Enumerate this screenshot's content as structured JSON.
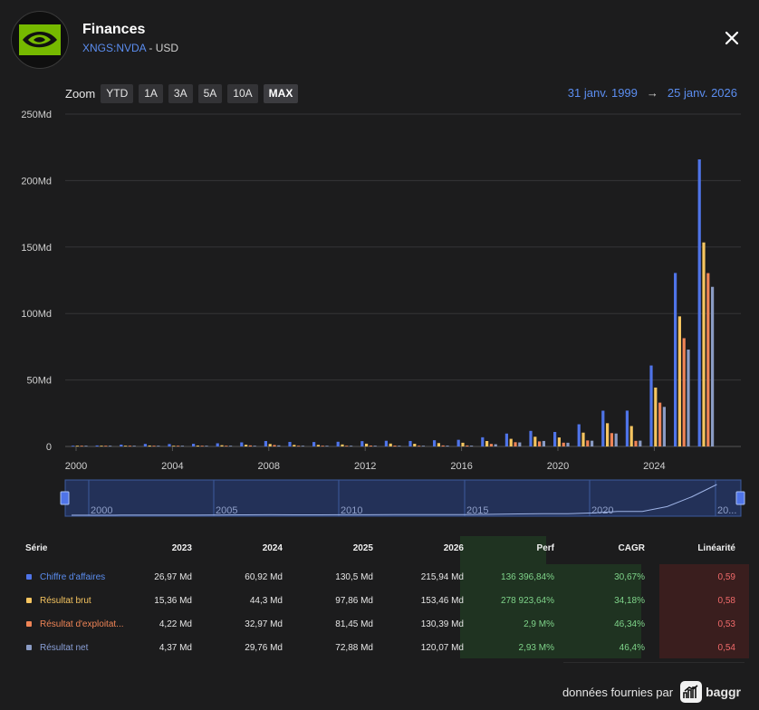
{
  "header": {
    "title": "Finances",
    "ticker": "XNGS:NVDA",
    "separator": " - ",
    "currency": "USD"
  },
  "zoom": {
    "label": "Zoom",
    "buttons": [
      "YTD",
      "1A",
      "3A",
      "5A",
      "10A",
      "MAX"
    ],
    "active": "MAX"
  },
  "daterange": {
    "from": "31 janv. 1999",
    "arrow": "→",
    "to": "25 janv. 2026"
  },
  "colors": {
    "revenue": "#4f74e8",
    "gross": "#f6c560",
    "operating": "#ef8456",
    "net": "#8a9bc4",
    "accent": "#5b8def"
  },
  "chart_data": {
    "type": "bar",
    "yticks": [
      "250Md",
      "200Md",
      "150Md",
      "100Md",
      "50Md",
      "0"
    ],
    "ylim": [
      0,
      250
    ],
    "xticks": [
      "2000",
      "2004",
      "2008",
      "2012",
      "2016",
      "2020",
      "2024"
    ],
    "years": [
      2000,
      2001,
      2002,
      2003,
      2004,
      2005,
      2006,
      2007,
      2008,
      2009,
      2010,
      2011,
      2012,
      2013,
      2014,
      2015,
      2016,
      2017,
      2018,
      2019,
      2020,
      2021,
      2022,
      2023,
      2024,
      2025,
      2026
    ],
    "series": [
      {
        "name": "Chiffre d'affaires",
        "values": [
          0.37,
          0.74,
          1.37,
          1.91,
          1.82,
          2.01,
          2.38,
          3.07,
          4.1,
          3.42,
          3.33,
          3.54,
          4.0,
          4.28,
          4.13,
          4.68,
          5.01,
          6.91,
          9.71,
          11.72,
          10.92,
          16.68,
          26.91,
          26.97,
          60.92,
          130.5,
          215.94
        ]
      },
      {
        "name": "Résultat brut",
        "values": [
          0.14,
          0.28,
          0.52,
          0.69,
          0.53,
          0.65,
          0.91,
          1.28,
          1.88,
          1.18,
          1.16,
          1.5,
          2.09,
          2.18,
          2.03,
          2.54,
          2.8,
          4.09,
          5.74,
          7.31,
          6.77,
          10.4,
          17.48,
          15.36,
          44.3,
          97.86,
          153.46
        ]
      },
      {
        "name": "Résultat d'exploitation",
        "values": [
          0.05,
          0.1,
          0.2,
          0.29,
          0.01,
          0.12,
          0.36,
          0.78,
          1.08,
          0.07,
          -0.07,
          0.29,
          0.65,
          0.65,
          0.5,
          0.76,
          0.75,
          1.93,
          3.21,
          3.8,
          2.85,
          4.53,
          10.04,
          4.22,
          32.97,
          81.45,
          130.39
        ]
      },
      {
        "name": "Résultat net",
        "values": [
          0.04,
          0.1,
          0.18,
          0.18,
          0.07,
          0.1,
          0.3,
          0.45,
          0.8,
          0.2,
          0.1,
          0.25,
          0.58,
          0.56,
          0.44,
          0.63,
          0.61,
          1.67,
          3.05,
          4.14,
          2.8,
          4.33,
          9.75,
          4.37,
          29.76,
          72.88,
          120.07
        ]
      }
    ]
  },
  "navigator": {
    "labels": [
      "2000",
      "2005",
      "2010",
      "2015",
      "2020",
      "20..."
    ]
  },
  "table": {
    "headers": [
      "Série",
      "2023",
      "2024",
      "2025",
      "2026",
      "Perf",
      "CAGR",
      "Linéarité"
    ],
    "rows": [
      {
        "name": "Chiffre d'affaires",
        "v2023": "26,97 Md",
        "v2024": "60,92 Md",
        "v2025": "130,5 Md",
        "v2026": "215,94 Md",
        "perf": "136 396,84%",
        "cagr": "30,67%",
        "lin": "0,59"
      },
      {
        "name": "Résultat brut",
        "v2023": "15,36 Md",
        "v2024": "44,3 Md",
        "v2025": "97,86 Md",
        "v2026": "153,46 Md",
        "perf": "278 923,64%",
        "cagr": "34,18%",
        "lin": "0,58"
      },
      {
        "name": "Résultat d'exploitat...",
        "v2023": "4,22 Md",
        "v2024": "32,97 Md",
        "v2025": "81,45 Md",
        "v2026": "130,39 Md",
        "perf": "2,9 M%",
        "cagr": "46,34%",
        "lin": "0,53"
      },
      {
        "name": "Résultat net",
        "v2023": "4,37 Md",
        "v2024": "29,76 Md",
        "v2025": "72,88 Md",
        "v2026": "120,07 Md",
        "perf": "2,93 M%",
        "cagr": "46,4%",
        "lin": "0,54"
      }
    ]
  },
  "footer": {
    "text": "données fournies par",
    "brand": "baggr"
  }
}
